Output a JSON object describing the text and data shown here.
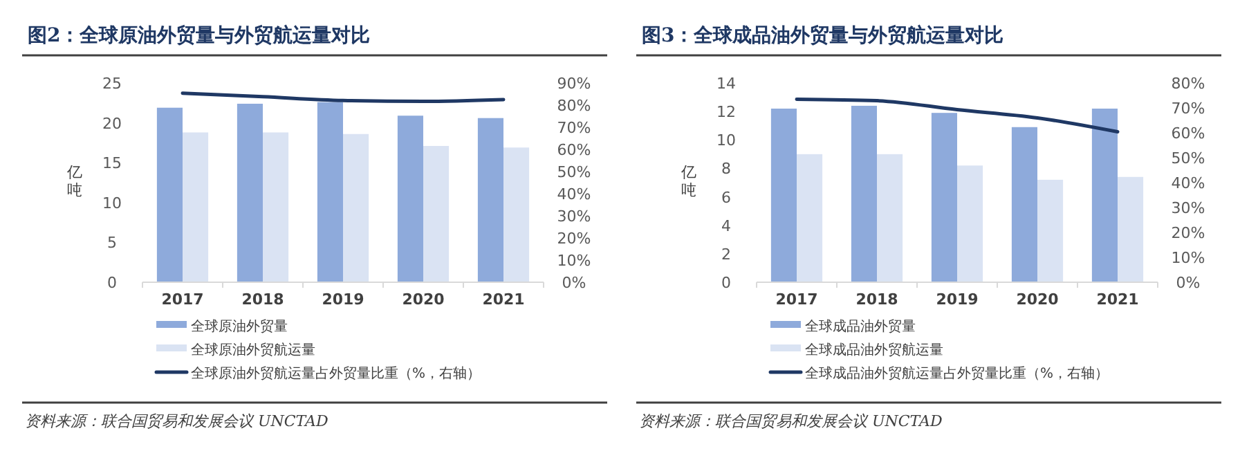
{
  "chart_data": [
    {
      "type": "bar",
      "title": "图2：全球原油外贸量与外贸航运量对比",
      "ylabel": "亿吨",
      "categories": [
        "2017",
        "2018",
        "2019",
        "2020",
        "2021"
      ],
      "series": [
        {
          "name": "全球原油外贸量",
          "color": "#8eaadb",
          "values": [
            21.9,
            22.4,
            22.6,
            20.9,
            20.6
          ]
        },
        {
          "name": "全球原油外贸航运量",
          "color": "#dae3f3",
          "values": [
            18.8,
            18.8,
            18.6,
            17.1,
            16.9
          ]
        },
        {
          "name": "全球原油外贸航运量占外贸量比重（%，右轴）",
          "type": "line",
          "axis": "y2",
          "color": "#1f3864",
          "values": [
            85.4,
            83.8,
            82.1,
            81.7,
            82.5
          ]
        }
      ],
      "ylim": [
        0,
        25
      ],
      "yticks": [
        0,
        5,
        10,
        15,
        20,
        25
      ],
      "y2lim": [
        0,
        90
      ],
      "y2ticks": [
        {
          "value": 0,
          "label": "0%"
        },
        {
          "value": 10,
          "label": "10%"
        },
        {
          "value": 20,
          "label": "20%"
        },
        {
          "value": 30,
          "label": "30%"
        },
        {
          "value": 40,
          "label": "40%"
        },
        {
          "value": 50,
          "label": "50%"
        },
        {
          "value": 60,
          "label": "60%"
        },
        {
          "value": 70,
          "label": "70%"
        },
        {
          "value": 80,
          "label": "80%"
        },
        {
          "value": 90,
          "label": "90%"
        }
      ],
      "legend": "bottom",
      "annotations": [
        "资料来源：联合国贸易和发展会议 UNCTAD"
      ]
    },
    {
      "type": "bar",
      "title": "图3：全球成品油外贸量与外贸航运量对比",
      "ylabel": "亿吨",
      "categories": [
        "2017",
        "2018",
        "2019",
        "2020",
        "2021"
      ],
      "series": [
        {
          "name": "全球成品油外贸量",
          "color": "#8eaadb",
          "values": [
            12.2,
            12.4,
            11.9,
            10.9,
            12.2
          ]
        },
        {
          "name": "全球成品油外贸航运量",
          "color": "#dae3f3",
          "values": [
            9.0,
            9.0,
            8.2,
            7.2,
            7.4
          ]
        },
        {
          "name": "全球成品油外贸航运量占外贸量比重（%，右轴）",
          "type": "line",
          "axis": "y2",
          "color": "#1f3864",
          "values": [
            73.5,
            72.9,
            69.3,
            66.0,
            60.4
          ]
        }
      ],
      "ylim": [
        0,
        14
      ],
      "yticks": [
        0,
        2,
        4,
        6,
        8,
        10,
        12,
        14
      ],
      "y2lim": [
        0,
        80
      ],
      "y2ticks": [
        {
          "value": 0,
          "label": "0%"
        },
        {
          "value": 10,
          "label": "10%"
        },
        {
          "value": 20,
          "label": "20%"
        },
        {
          "value": 30,
          "label": "30%"
        },
        {
          "value": 40,
          "label": "40%"
        },
        {
          "value": 50,
          "label": "50%"
        },
        {
          "value": 60,
          "label": "60%"
        },
        {
          "value": 70,
          "label": "70%"
        },
        {
          "value": 80,
          "label": "80%"
        }
      ],
      "legend": "bottom",
      "annotations": [
        "资料来源：联合国贸易和发展会议 UNCTAD"
      ]
    }
  ]
}
